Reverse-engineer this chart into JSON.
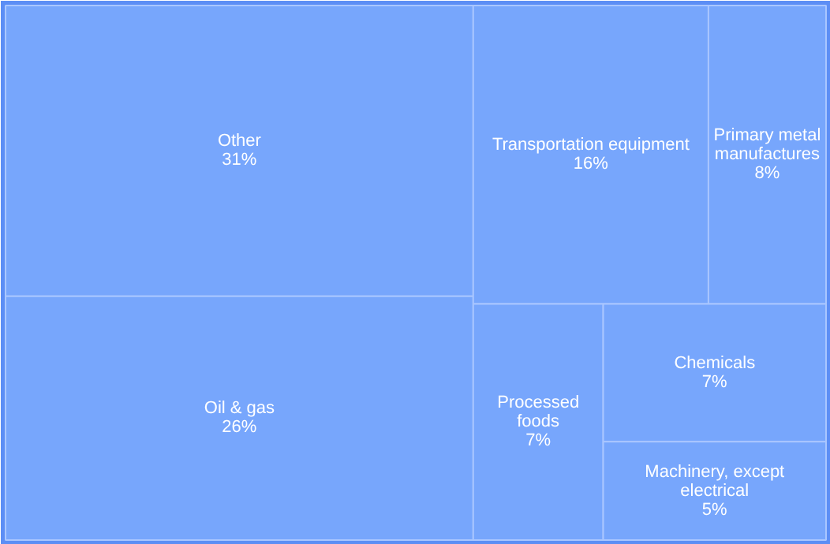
{
  "chart_data": {
    "type": "other",
    "categories": [
      "Other",
      "Oil & gas",
      "Transportation equipment",
      "Primary metal manufactures",
      "Processed foods",
      "Chemicals",
      "Machinery, except electrical"
    ],
    "values": [
      31,
      26,
      16,
      8,
      7,
      7,
      5
    ],
    "value_labels": [
      "31%",
      "26%",
      "16%",
      "8%",
      "7%",
      "7%",
      "5%"
    ],
    "color": "#77a6fc"
  }
}
